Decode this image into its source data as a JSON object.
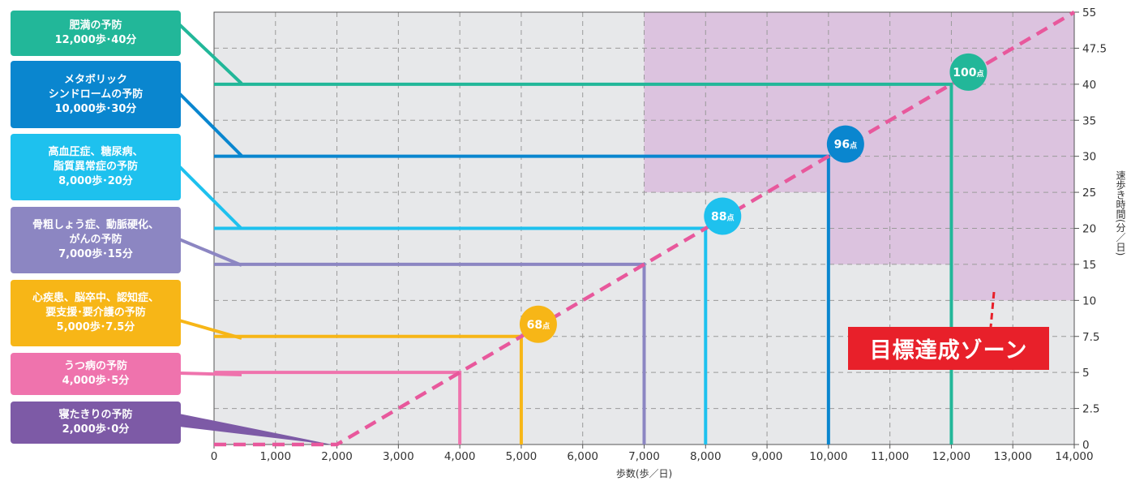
{
  "chart_data": {
    "type": "line",
    "xlabel": "歩数(歩／日)",
    "ylabel": "速歩き時間(分／日)",
    "xlim": [
      0,
      14000
    ],
    "ylim": [
      0,
      55
    ],
    "xticks": [
      "0",
      "1,000",
      "2,000",
      "3,000",
      "4,000",
      "5,000",
      "6,000",
      "7,000",
      "8,000",
      "9,000",
      "10,000",
      "11,000",
      "12,000",
      "13,000",
      "14,000"
    ],
    "yticks": [
      "0",
      "2.5",
      "5",
      "7.5",
      "10",
      "15",
      "20",
      "25",
      "30",
      "35",
      "40",
      "47.5",
      "55"
    ],
    "yaxis_scale": "piecewise: ticks at 0, 2.5, 5, 7.5, 10, 15, 20, 25, 30, 35, 40, 47.5, 55 are equally spaced",
    "grid": true,
    "trend_line": {
      "style": "dashed",
      "color": "#e8589c",
      "points": [
        [
          0,
          0
        ],
        [
          2000,
          0
        ],
        [
          4000,
          5
        ],
        [
          5000,
          7.5
        ],
        [
          7000,
          15
        ],
        [
          8000,
          20
        ],
        [
          10000,
          30
        ],
        [
          12000,
          40
        ],
        [
          14000,
          55
        ]
      ]
    },
    "thresholds": [
      {
        "label_lines": [
          "肥満の予防",
          "12,000歩･40分"
        ],
        "x": 12000,
        "y": 40,
        "color": "#22b799"
      },
      {
        "label_lines": [
          "メタボリック",
          "シンドロームの予防",
          "10,000歩･30分"
        ],
        "x": 10000,
        "y": 30,
        "color": "#0a86cf"
      },
      {
        "label_lines": [
          "高血圧症、糖尿病、",
          "脂質異常症の予防",
          "8,000歩･20分"
        ],
        "x": 8000,
        "y": 20,
        "color": "#1ec1ee"
      },
      {
        "label_lines": [
          "骨粗しょう症、動脈硬化、",
          "がんの予防",
          "7,000歩･15分"
        ],
        "x": 7000,
        "y": 15,
        "color": "#8c86c2"
      },
      {
        "label_lines": [
          "心疾患、脳卒中、認知症、",
          "要支援･要介護の予防",
          "5,000歩･7.5分"
        ],
        "x": 5000,
        "y": 7.5,
        "color": "#f7b617"
      },
      {
        "label_lines": [
          "うつ病の予防",
          "4,000歩･5分"
        ],
        "x": 4000,
        "y": 5,
        "color": "#ef73ad"
      },
      {
        "label_lines": [
          "寝たきりの予防",
          "2,000歩･0分"
        ],
        "x": 2000,
        "y": 0,
        "color": "#7d5aa6"
      }
    ],
    "scores": [
      {
        "num": "100",
        "unit": "点",
        "x": 12000,
        "y": 40,
        "color": "#22b799"
      },
      {
        "num": "96",
        "unit": "点",
        "x": 10000,
        "y": 30,
        "color": "#0a86cf"
      },
      {
        "num": "88",
        "unit": "点",
        "x": 8000,
        "y": 20,
        "color": "#1ec1ee"
      },
      {
        "num": "68",
        "unit": "点",
        "x": 5000,
        "y": 7.5,
        "color": "#f7b617"
      }
    ],
    "target_zone": {
      "label": "目標達成ゾーン",
      "color": "#dcc3df",
      "steps": [
        [
          6000,
          55
        ],
        [
          7000,
          25
        ],
        [
          10000,
          15
        ],
        [
          12000,
          10
        ]
      ]
    }
  }
}
